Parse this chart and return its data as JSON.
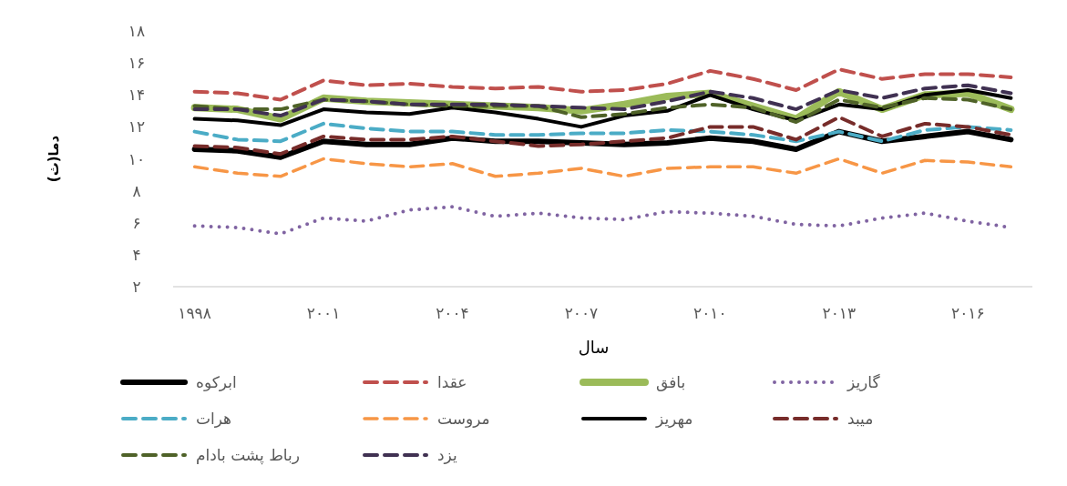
{
  "chart_data": {
    "type": "line",
    "ylabel": "دما(ث)",
    "xlabel": "سال",
    "x": [
      1998,
      1999,
      2000,
      2001,
      2002,
      2003,
      2004,
      2005,
      2006,
      2007,
      2008,
      2009,
      2010,
      2011,
      2012,
      2013,
      2014,
      2015,
      2016,
      2017
    ],
    "xlim": [
      1997.5,
      2017.5
    ],
    "xticks": [
      {
        "value": 1998,
        "label": "۱۹۹۸"
      },
      {
        "value": 2001,
        "label": "۲۰۰۱"
      },
      {
        "value": 2004,
        "label": "۲۰۰۴"
      },
      {
        "value": 2007,
        "label": "۲۰۰۷"
      },
      {
        "value": 2010,
        "label": "۲۰۱۰"
      },
      {
        "value": 2013,
        "label": "۲۰۱۳"
      },
      {
        "value": 2016,
        "label": "۲۰۱۶"
      }
    ],
    "ylim": [
      2,
      18
    ],
    "yticks": [
      {
        "value": 2,
        "label": "۲"
      },
      {
        "value": 4,
        "label": "۴"
      },
      {
        "value": 6,
        "label": "۶"
      },
      {
        "value": 8,
        "label": "۸"
      },
      {
        "value": 10,
        "label": "۱۰"
      },
      {
        "value": 12,
        "label": "۱۲"
      },
      {
        "value": 14,
        "label": "۱۴"
      },
      {
        "value": 16,
        "label": "۱۶"
      },
      {
        "value": 18,
        "label": "۱۸"
      }
    ],
    "grid": false,
    "legend": "bottom",
    "marker": "none",
    "series": [
      {
        "name": "ابرکوه",
        "color": "#000000",
        "line_style": "solid",
        "values": [
          10.6,
          10.5,
          10.1,
          11.1,
          10.9,
          10.9,
          11.3,
          11.1,
          11.1,
          11.0,
          10.9,
          11.0,
          11.3,
          11.1,
          10.6,
          11.7,
          11.1,
          11.4,
          11.7,
          11.2
        ]
      },
      {
        "name": "عقدا",
        "color": "#c0504d",
        "line_style": "dashed",
        "values": [
          14.2,
          14.1,
          13.7,
          14.9,
          14.6,
          14.7,
          14.5,
          14.4,
          14.5,
          14.2,
          14.3,
          14.7,
          15.5,
          15.0,
          14.3,
          15.6,
          15.0,
          15.3,
          15.3,
          15.1
        ]
      },
      {
        "name": "بافق",
        "color": "#9bbb59",
        "line_style": "solid",
        "values": [
          13.2,
          13.1,
          12.5,
          13.8,
          13.6,
          13.5,
          13.4,
          13.3,
          13.2,
          13.0,
          13.4,
          13.9,
          14.1,
          13.3,
          12.5,
          14.2,
          13.1,
          14.0,
          14.1,
          13.1
        ]
      },
      {
        "name": "گاریز",
        "color": "#8064a2",
        "line_style": "dotted",
        "values": [
          5.8,
          5.7,
          5.3,
          6.3,
          6.1,
          6.8,
          7.0,
          6.4,
          6.6,
          6.3,
          6.2,
          6.7,
          6.6,
          6.4,
          5.9,
          5.8,
          6.3,
          6.6,
          6.1,
          5.7
        ]
      },
      {
        "name": "هرات",
        "color": "#4bacc6",
        "line_style": "dashed",
        "values": [
          11.7,
          11.2,
          11.1,
          12.2,
          11.9,
          11.7,
          11.7,
          11.5,
          11.5,
          11.6,
          11.6,
          11.8,
          11.7,
          11.5,
          11.1,
          11.7,
          11.1,
          11.8,
          12.0,
          11.8
        ]
      },
      {
        "name": "مروست",
        "color": "#f79646",
        "line_style": "dashed",
        "values": [
          9.5,
          9.1,
          8.9,
          10.0,
          9.7,
          9.5,
          9.7,
          8.9,
          9.1,
          9.4,
          8.9,
          9.4,
          9.5,
          9.5,
          9.1,
          10.0,
          9.1,
          9.9,
          9.8,
          9.5
        ]
      },
      {
        "name": "مهریز",
        "color": "#000000",
        "line_style": "solid",
        "values": [
          12.5,
          12.4,
          12.1,
          13.1,
          12.9,
          12.8,
          13.2,
          12.9,
          12.5,
          12.0,
          12.7,
          13.0,
          14.0,
          13.1,
          12.4,
          13.4,
          13.1,
          14.0,
          14.3,
          13.8
        ]
      },
      {
        "name": "میبد",
        "color": "#772c2a",
        "line_style": "dashed",
        "values": [
          10.8,
          10.7,
          10.3,
          11.4,
          11.2,
          11.2,
          11.4,
          11.1,
          10.8,
          10.9,
          11.1,
          11.3,
          12.0,
          12.0,
          11.2,
          12.6,
          11.4,
          12.2,
          12.0,
          11.5
        ]
      },
      {
        "name": "رباط پشت بادام",
        "color": "#4f6228",
        "line_style": "dashed",
        "values": [
          13.3,
          13.1,
          13.1,
          13.7,
          13.6,
          13.4,
          13.3,
          13.3,
          13.3,
          12.6,
          12.8,
          13.2,
          13.4,
          13.2,
          12.3,
          13.7,
          13.2,
          13.8,
          13.7,
          13.1
        ]
      },
      {
        "name": "یزد",
        "color": "#403152",
        "line_style": "dashed",
        "values": [
          13.1,
          13.1,
          12.7,
          13.7,
          13.6,
          13.4,
          13.4,
          13.4,
          13.3,
          13.2,
          13.1,
          13.6,
          14.2,
          13.8,
          13.1,
          14.3,
          13.8,
          14.4,
          14.6,
          14.1
        ]
      }
    ]
  }
}
